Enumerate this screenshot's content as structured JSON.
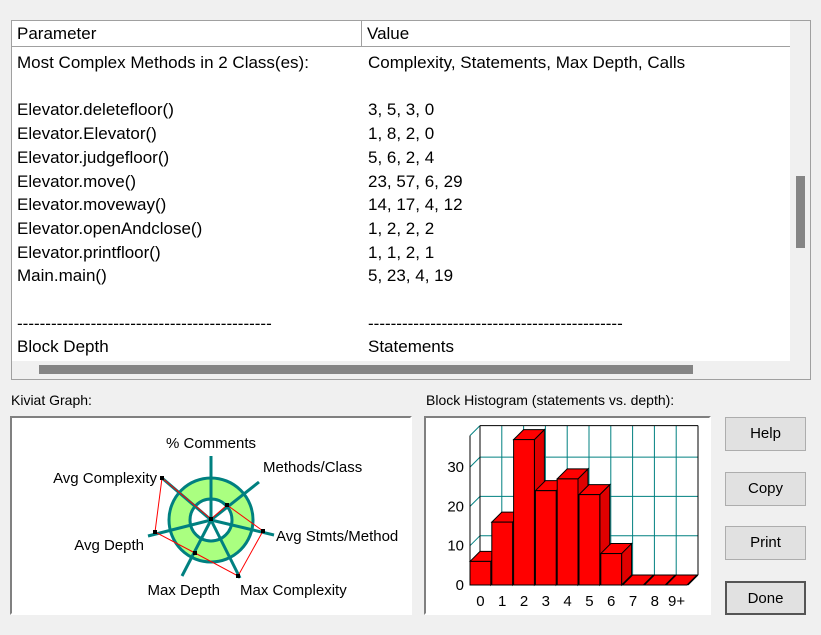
{
  "table": {
    "headers": [
      "Parameter",
      "Value"
    ],
    "rows": [
      [
        "Most Complex Methods in 2 Class(es):",
        "Complexity, Statements, Max Depth, Calls"
      ],
      [
        "",
        ""
      ],
      [
        "Elevator.deletefloor()",
        "3, 5, 3, 0"
      ],
      [
        "Elevator.Elevator()",
        "1, 8, 2, 0"
      ],
      [
        "Elevator.judgefloor()",
        "5, 6, 2, 4"
      ],
      [
        "Elevator.move()",
        "23, 57, 6, 29"
      ],
      [
        "Elevator.moveway()",
        "14, 17, 4, 12"
      ],
      [
        "Elevator.openAndclose()",
        "1, 2, 2, 2"
      ],
      [
        "Elevator.printfloor()",
        "1, 1, 2, 1"
      ],
      [
        "Main.main()",
        "5, 23, 4, 19"
      ],
      [
        "",
        ""
      ],
      [
        "---------------------------------------------",
        "---------------------------------------------"
      ],
      [
        "Block Depth",
        "Statements"
      ]
    ]
  },
  "kiviat": {
    "label": "Kiviat Graph:",
    "axes": [
      "% Comments",
      "Methods/Class",
      "Avg Stmts/Method",
      "Max Complexity",
      "Max Depth",
      "Avg Depth",
      "Avg Complexity"
    ],
    "colors": {
      "ring": "#aaff80",
      "axis": "#008080",
      "polygon": "#ff0000"
    }
  },
  "histogram": {
    "label": "Block Histogram (statements vs. depth):"
  },
  "chart_data": {
    "type": "bar",
    "categories": [
      "0",
      "1",
      "2",
      "3",
      "4",
      "5",
      "6",
      "7",
      "8",
      "9+"
    ],
    "values": [
      6,
      16,
      37,
      24,
      27,
      23,
      8,
      0,
      0,
      0
    ],
    "yticks": [
      0,
      10,
      20,
      30
    ],
    "ylim": [
      0,
      38
    ],
    "grid": true,
    "bar_color": "#ff0000",
    "grid_color": "#008080"
  },
  "buttons": {
    "help": "Help",
    "copy": "Copy",
    "print": "Print",
    "done": "Done"
  }
}
